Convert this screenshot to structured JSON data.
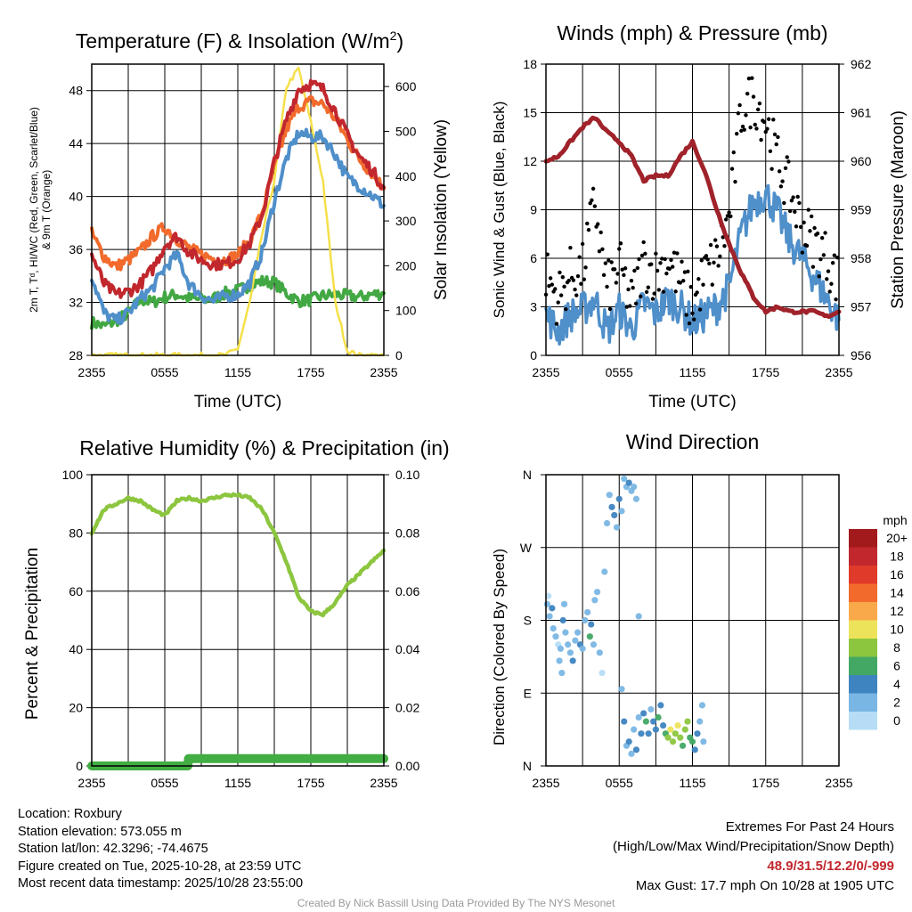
{
  "chart_data": [
    {
      "id": "temperature",
      "type": "line",
      "title": "Temperature (F) & Insolation (W/m²)",
      "title_main": "Temperature (F) & Insolation (W/m",
      "title_sup": "2",
      "title_end": ")",
      "xlabel": "Time (UTC)",
      "ylabel_left": [
        "2m T, Tᵈ, HI/WC (Red, Green, Scarlet/Blue)",
        "& 9m T (Orange)"
      ],
      "ylabel_right": "Solar Insolation (Yellow)",
      "x_ticks": [
        "2355",
        "0555",
        "1155",
        "1755",
        "2355"
      ],
      "ylim_left": [
        28,
        50
      ],
      "y_ticks_left": [
        28,
        32,
        36,
        40,
        44,
        48
      ],
      "ylim_right": [
        0,
        650
      ],
      "y_ticks_right": [
        0,
        100,
        200,
        300,
        400,
        500,
        600
      ],
      "x": [
        0,
        1,
        2,
        3,
        4,
        5,
        6,
        7,
        8,
        9,
        10,
        11,
        12,
        13,
        14,
        15,
        16,
        17,
        18,
        19,
        20,
        21,
        22,
        23,
        24
      ],
      "series": [
        {
          "name": "2m T",
          "color": "#c1272d",
          "axis": "left",
          "values": [
            35.6,
            33.4,
            32.6,
            32.8,
            33.4,
            34.5,
            36.3,
            37.0,
            35.8,
            35.2,
            34.9,
            34.9,
            35.3,
            36.5,
            38.6,
            42.6,
            45.8,
            48.1,
            48.5,
            48.1,
            46.5,
            44.6,
            43.0,
            42.0,
            40.7
          ]
        },
        {
          "name": "9m T",
          "color": "#f26b2c",
          "axis": "left",
          "values": [
            37.2,
            35.5,
            34.7,
            35.2,
            35.9,
            37.0,
            37.7,
            36.8,
            36.1,
            35.6,
            35.3,
            35.2,
            35.6,
            36.7,
            38.8,
            42.2,
            45.1,
            46.8,
            47.2,
            47.0,
            45.9,
            44.3,
            42.8,
            41.8,
            40.6
          ]
        },
        {
          "name": "HI/WC",
          "color": "#4f8fca",
          "axis": "left",
          "values": [
            34.0,
            31.2,
            30.6,
            31.2,
            32.3,
            33.1,
            34.6,
            35.6,
            33.4,
            32.5,
            32.1,
            32.5,
            32.6,
            33.5,
            35.8,
            39.7,
            42.9,
            44.8,
            44.5,
            44.5,
            43.2,
            41.4,
            40.8,
            40.1,
            39.3
          ]
        },
        {
          "name": "Td",
          "color": "#42a843",
          "axis": "left",
          "values": [
            30.5,
            30.2,
            30.6,
            31.2,
            32.2,
            32.0,
            32.4,
            32.6,
            32.3,
            32.2,
            32.3,
            32.7,
            32.9,
            33.3,
            33.6,
            33.5,
            32.7,
            32.1,
            32.2,
            32.5,
            32.6,
            32.5,
            32.4,
            32.6,
            32.7
          ]
        },
        {
          "name": "Solar Insolation",
          "color": "#f5e04a",
          "axis": "right",
          "values": [
            0,
            0,
            0,
            0,
            0,
            0,
            0,
            0,
            0,
            0,
            0,
            0,
            15,
            120,
            270,
            390,
            600,
            640,
            520,
            390,
            120,
            10,
            0,
            0,
            0
          ]
        }
      ]
    },
    {
      "id": "winds",
      "type": "line",
      "title": "Winds (mph) & Pressure (mb)",
      "xlabel": "Time (UTC)",
      "ylabel_left": "Sonic Wind & Gust (Blue, Black)",
      "ylabel_right": "Station Pressure (Maroon)",
      "x_ticks": [
        "2355",
        "0555",
        "1155",
        "1755",
        "2355"
      ],
      "ylim_left": [
        0,
        18
      ],
      "y_ticks_left": [
        0,
        3,
        6,
        9,
        12,
        15,
        18
      ],
      "ylim_right": [
        956,
        962
      ],
      "y_ticks_right": [
        956,
        957,
        958,
        959,
        960,
        961,
        962
      ],
      "x": [
        0,
        1,
        2,
        3,
        4,
        5,
        6,
        7,
        8,
        9,
        10,
        11,
        12,
        13,
        14,
        15,
        16,
        17,
        18,
        19,
        20,
        21,
        22,
        23,
        24
      ],
      "series": [
        {
          "name": "Sonic Wind",
          "color": "#4f8fca",
          "axis": "left",
          "values": [
            2.5,
            1.5,
            2.5,
            2.8,
            3.5,
            1.5,
            2.8,
            1.6,
            3.2,
            2.6,
            3.5,
            3.0,
            2.0,
            2.5,
            3.0,
            4.2,
            7.5,
            9.5,
            10.0,
            8.8,
            7.0,
            6.0,
            4.8,
            3.5,
            2.2
          ]
        },
        {
          "name": "Gust",
          "color": "#000000",
          "axis": "left",
          "type": "scatter",
          "values": [
            5.0,
            3.5,
            5.0,
            5.2,
            9.5,
            4.0,
            5.5,
            3.2,
            5.8,
            5.0,
            6.0,
            4.5,
            3.0,
            5.0,
            6.0,
            8.5,
            15.0,
            16.0,
            14.5,
            12.0,
            10.0,
            8.0,
            7.0,
            6.0,
            4.5
          ]
        },
        {
          "name": "Station Pressure",
          "color": "#a0222a",
          "axis": "right",
          "values": [
            960.0,
            960.1,
            960.4,
            960.7,
            960.9,
            960.6,
            960.4,
            960.1,
            959.6,
            959.7,
            959.7,
            960.1,
            960.4,
            959.8,
            959.0,
            958.3,
            957.7,
            957.2,
            956.9,
            957.0,
            956.9,
            956.9,
            956.9,
            956.8,
            956.9
          ]
        }
      ]
    },
    {
      "id": "humidity",
      "type": "line",
      "title": "Relative Humidity (%) & Precipitation (in)",
      "xlabel": "",
      "ylabel_left": "Percent & Precipitation",
      "ylabel_right": "",
      "x_ticks": [
        "2355",
        "0555",
        "1155",
        "1755",
        "2355"
      ],
      "ylim_left": [
        0,
        100
      ],
      "y_ticks_left": [
        0,
        20,
        40,
        60,
        80,
        100
      ],
      "ylim_right": [
        0.0,
        0.1
      ],
      "y_ticks_right": [
        "0.00",
        "0.02",
        "0.04",
        "0.06",
        "0.08",
        "0.10"
      ],
      "x": [
        0,
        1,
        2,
        3,
        4,
        5,
        6,
        7,
        8,
        9,
        10,
        11,
        12,
        13,
        14,
        15,
        16,
        17,
        18,
        19,
        20,
        21,
        22,
        23,
        24
      ],
      "series": [
        {
          "name": "Relative Humidity",
          "color": "#8cc63f",
          "axis": "left",
          "values": [
            80,
            88,
            90,
            92,
            91,
            88,
            86,
            91,
            92,
            91,
            92,
            93,
            93,
            92,
            88,
            80,
            70,
            58,
            53,
            52,
            56,
            62,
            66,
            70,
            74
          ]
        },
        {
          "name": "Precipitation",
          "color": "#42ad42",
          "axis": "left",
          "values": [
            0,
            0,
            0,
            0,
            0,
            0,
            0,
            0,
            2.5,
            2.5,
            2.5,
            2.5,
            2.5,
            2.5,
            2.5,
            2.5,
            2.5,
            2.5,
            2.5,
            2.5,
            2.5,
            2.5,
            2.5,
            2.5,
            2.5
          ]
        }
      ]
    },
    {
      "id": "direction",
      "type": "scatter",
      "title": "Wind Direction",
      "xlabel": "",
      "ylabel_left": "Direction (Colored By Speed)",
      "x_ticks": [
        "2355",
        "0555",
        "1155",
        "1755",
        "2355"
      ],
      "y_ticks_left": [
        "N",
        "E",
        "S",
        "W",
        "N"
      ],
      "ylim_left": [
        0,
        360
      ],
      "legend_title": "mph",
      "legend": [
        {
          "label": "20+",
          "color": "#a31a1c"
        },
        {
          "label": "18",
          "color": "#c1272d"
        },
        {
          "label": "16",
          "color": "#e03b2a"
        },
        {
          "label": "14",
          "color": "#f26b2c"
        },
        {
          "label": "12",
          "color": "#f9a94a"
        },
        {
          "label": "10",
          "color": "#ede35a"
        },
        {
          "label": "8",
          "color": "#8cc63f"
        },
        {
          "label": "6",
          "color": "#42a864"
        },
        {
          "label": "4",
          "color": "#3e84c0"
        },
        {
          "label": "2",
          "color": "#7ab6e4"
        },
        {
          "label": "0",
          "color": "#b6ddf5"
        }
      ],
      "points": [
        [
          0.1,
          200,
          2
        ],
        [
          0.2,
          210,
          1
        ],
        [
          0.3,
          185,
          3
        ],
        [
          0.5,
          195,
          4
        ],
        [
          0.6,
          170,
          3
        ],
        [
          0.8,
          160,
          2
        ],
        [
          1.0,
          150,
          1
        ],
        [
          1.1,
          130,
          2
        ],
        [
          1.2,
          145,
          3
        ],
        [
          1.3,
          115,
          2
        ],
        [
          1.4,
          180,
          4
        ],
        [
          1.5,
          200,
          2
        ],
        [
          1.6,
          165,
          3
        ],
        [
          1.8,
          150,
          2
        ],
        [
          2.0,
          140,
          3
        ],
        [
          2.2,
          130,
          4
        ],
        [
          2.4,
          155,
          2
        ],
        [
          2.6,
          165,
          3
        ],
        [
          2.8,
          150,
          4
        ],
        [
          3.0,
          145,
          3
        ],
        [
          3.2,
          180,
          2
        ],
        [
          3.4,
          190,
          3
        ],
        [
          3.6,
          160,
          6
        ],
        [
          3.7,
          175,
          4
        ],
        [
          3.9,
          150,
          2
        ],
        [
          4.0,
          205,
          3
        ],
        [
          4.2,
          215,
          2
        ],
        [
          4.4,
          140,
          2
        ],
        [
          4.6,
          115,
          1
        ],
        [
          4.8,
          240,
          2
        ],
        [
          5.0,
          300,
          2
        ],
        [
          5.2,
          335,
          3
        ],
        [
          5.4,
          320,
          4
        ],
        [
          5.6,
          310,
          5
        ],
        [
          5.8,
          295,
          3
        ],
        [
          6.0,
          330,
          4
        ],
        [
          6.2,
          315,
          3
        ],
        [
          6.4,
          355,
          2
        ],
        [
          6.6,
          345,
          2
        ],
        [
          6.8,
          350,
          4
        ],
        [
          7.0,
          340,
          3
        ],
        [
          7.2,
          345,
          2
        ],
        [
          7.4,
          330,
          2
        ],
        [
          7.6,
          185,
          2
        ],
        [
          6.2,
          95,
          3
        ],
        [
          6.4,
          55,
          4
        ],
        [
          6.6,
          25,
          3
        ],
        [
          6.8,
          30,
          4
        ],
        [
          7.0,
          15,
          2
        ],
        [
          7.2,
          45,
          3
        ],
        [
          7.4,
          20,
          4
        ],
        [
          7.6,
          60,
          3
        ],
        [
          7.8,
          40,
          4
        ],
        [
          8.0,
          65,
          5
        ],
        [
          8.2,
          55,
          6
        ],
        [
          8.4,
          40,
          4
        ],
        [
          8.6,
          70,
          3
        ],
        [
          8.8,
          55,
          4
        ],
        [
          9.0,
          45,
          5
        ],
        [
          9.2,
          60,
          6
        ],
        [
          9.4,
          75,
          4
        ],
        [
          9.6,
          50,
          5
        ],
        [
          9.8,
          40,
          7
        ],
        [
          10.0,
          35,
          9
        ],
        [
          10.2,
          45,
          10
        ],
        [
          10.4,
          30,
          8
        ],
        [
          10.6,
          40,
          9
        ],
        [
          10.8,
          50,
          10
        ],
        [
          11.0,
          35,
          8
        ],
        [
          11.2,
          25,
          7
        ],
        [
          11.4,
          45,
          9
        ],
        [
          11.6,
          55,
          8
        ],
        [
          11.8,
          35,
          7
        ],
        [
          12.0,
          30,
          6
        ],
        [
          12.2,
          20,
          5
        ],
        [
          12.4,
          40,
          4
        ],
        [
          12.6,
          55,
          3
        ],
        [
          12.8,
          75,
          2
        ],
        [
          12.9,
          30,
          2
        ]
      ]
    }
  ],
  "info": {
    "location": "Location: Roxbury",
    "elevation": "Station elevation: 573.055 m",
    "latlon": "Station lat/lon: 42.3296; -74.4675",
    "created": "Figure created on Tue, 2025-10-28, at 23:59 UTC",
    "recent": "Most recent data timestamp: 2025/10/28 23:55:00"
  },
  "extremes": {
    "title": "Extremes For Past 24 Hours",
    "subtitle": "(High/Low/Max Wind/Precipitation/Snow Depth)",
    "values": "48.9/31.5/12.2/0/-999",
    "gust": "Max Gust: 17.7 mph On 10/28 at 1905 UTC"
  },
  "credit": "Created By Nick Bassill Using Data Provided By The NYS Mesonet"
}
